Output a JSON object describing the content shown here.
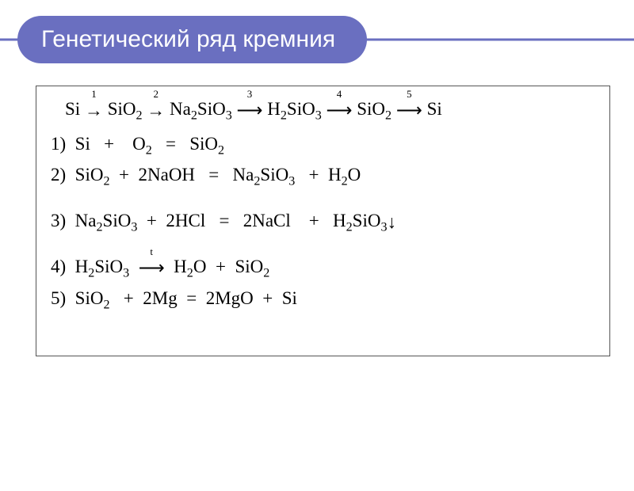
{
  "colors": {
    "accent": "#6a6fc0",
    "title_text": "#ffffff",
    "body_text": "#000000",
    "border": "#555555",
    "background": "#ffffff"
  },
  "title": "Генетический ряд кремния",
  "title_fontsize": 30,
  "body_fontsize": 23,
  "chain": {
    "n1": "Si",
    "s1": "1",
    "n2": "SiO",
    "n2sub": "2",
    "s2": "2",
    "n3": "Na",
    "n3sub1": "2",
    "n3b": "SiO",
    "n3sub2": "3",
    "s3": "3",
    "n4": "H",
    "n4sub1": "2",
    "n4b": "SiO",
    "n4sub2": "3",
    "s4": "4",
    "n5": "SiO",
    "n5sub": "2",
    "s5": "5",
    "n6": "Si"
  },
  "eq1": {
    "num": "1)",
    "text_a": "Si",
    "plus": "+",
    "text_b": "O",
    "sub_b": "2",
    "eq": "=",
    "text_c": "SiO",
    "sub_c": "2"
  },
  "eq2": {
    "num": "2)",
    "a1": "SiO",
    "a1s": "2",
    "plus": "+",
    "b1": "2NaOH",
    "eq": "=",
    "c1": "Na",
    "c1s": "2",
    "c2": "SiO",
    "c2s": "3",
    "plus2": "+",
    "d1": "H",
    "d1s": "2",
    "d2": "O"
  },
  "eq3": {
    "num": "3)",
    "a1": "Na",
    "a1s": "2",
    "a2": "SiO",
    "a2s": "3",
    "plus": "+",
    "b1": "2HCl",
    "eq": "=",
    "c1": "2NaCl",
    "plus2": "+",
    "d1": "H",
    "d1s": "2",
    "d2": "SiO",
    "d2s": "3",
    "arrow": "↓"
  },
  "eq4": {
    "num": "4)",
    "a1": "H",
    "a1s": "2",
    "a2": "SiO",
    "a2s": "3",
    "arr_lbl": "t",
    "c1": "H",
    "c1s": "2",
    "c2": "O",
    "plus": "+",
    "d1": "SiO",
    "d1s": "2"
  },
  "eq5": {
    "num": "5)",
    "a1": "SiO",
    "a1s": "2",
    "plus": "+",
    "b1": "2Mg",
    "eq": "=",
    "c1": "2MgO",
    "plus2": "+",
    "d1": "Si"
  }
}
